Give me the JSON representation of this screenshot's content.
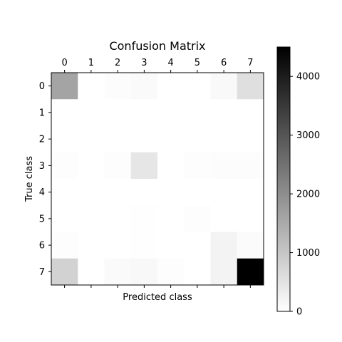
{
  "chart_data": {
    "type": "heatmap",
    "title": "Confusion Matrix",
    "xlabel": "Predicted class",
    "ylabel": "True class",
    "x_categories": [
      "0",
      "1",
      "2",
      "3",
      "4",
      "5",
      "6",
      "7"
    ],
    "y_categories": [
      "0",
      "1",
      "2",
      "3",
      "4",
      "5",
      "6",
      "7"
    ],
    "values": [
      [
        1600,
        0,
        60,
        80,
        0,
        0,
        100,
        560
      ],
      [
        0,
        0,
        0,
        0,
        0,
        0,
        0,
        0
      ],
      [
        0,
        0,
        0,
        0,
        0,
        0,
        0,
        0
      ],
      [
        40,
        0,
        40,
        450,
        0,
        30,
        60,
        60
      ],
      [
        0,
        0,
        0,
        0,
        0,
        0,
        0,
        0
      ],
      [
        0,
        0,
        0,
        25,
        0,
        40,
        0,
        0
      ],
      [
        40,
        0,
        0,
        25,
        0,
        0,
        210,
        70
      ],
      [
        800,
        0,
        80,
        120,
        40,
        0,
        220,
        4500
      ]
    ],
    "colormap": "gray_r",
    "colorbar": {
      "min": 0,
      "max": 4500,
      "ticks": [
        0,
        1000,
        2000,
        3000,
        4000
      ]
    },
    "x_tick_position": "top",
    "grid": false
  }
}
